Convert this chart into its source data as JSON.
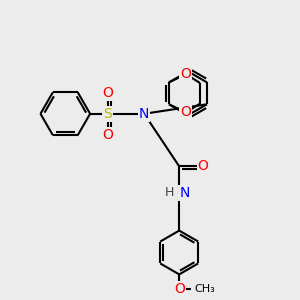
{
  "bg_color": "#ececec",
  "atom_colors": {
    "N": "#0000ff",
    "O": "#ff0000",
    "S": "#b8b800",
    "C": "#000000",
    "H": "#404040"
  },
  "bond_color": "#000000",
  "bond_lw": 1.5,
  "ring_r": 0.72
}
